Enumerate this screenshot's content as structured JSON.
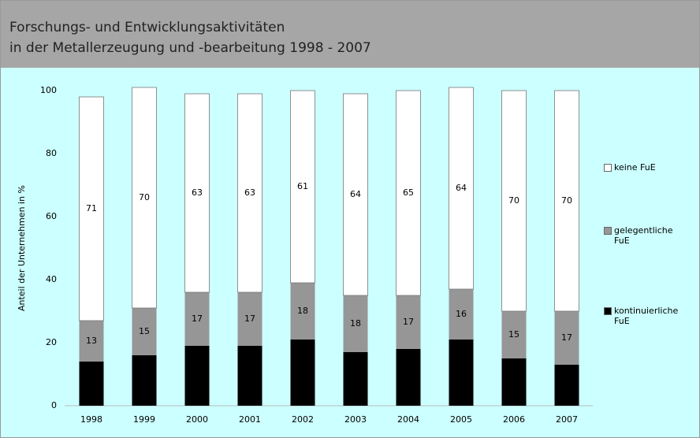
{
  "chart_data": {
    "type": "stacked_bar",
    "title": [
      "Forschungs- und Entwicklungsaktivitäten",
      "in der Metallerzeugung und -bearbeitung 1998 - 2007"
    ],
    "y_label": "Anteil der Unternehmen in %",
    "categories": [
      "1998",
      "1999",
      "2000",
      "2001",
      "2002",
      "2003",
      "2004",
      "2005",
      "2006",
      "2007"
    ],
    "series": [
      {
        "name": "kontinuierliche FuE",
        "color": "#000000",
        "values": [
          14,
          16,
          19,
          19,
          21,
          17,
          18,
          21,
          15,
          13
        ]
      },
      {
        "name": "gelegentliche FuE",
        "color": "#969696",
        "values": [
          13,
          15,
          17,
          17,
          18,
          18,
          17,
          16,
          15,
          17
        ]
      },
      {
        "name": "keine FuE",
        "color": "#ffffff",
        "values": [
          71,
          70,
          63,
          63,
          61,
          64,
          65,
          64,
          70,
          70
        ]
      }
    ],
    "ylim": [
      0,
      100
    ],
    "yticks": [
      0,
      20,
      40,
      60,
      80,
      100
    ],
    "legend": "right"
  }
}
